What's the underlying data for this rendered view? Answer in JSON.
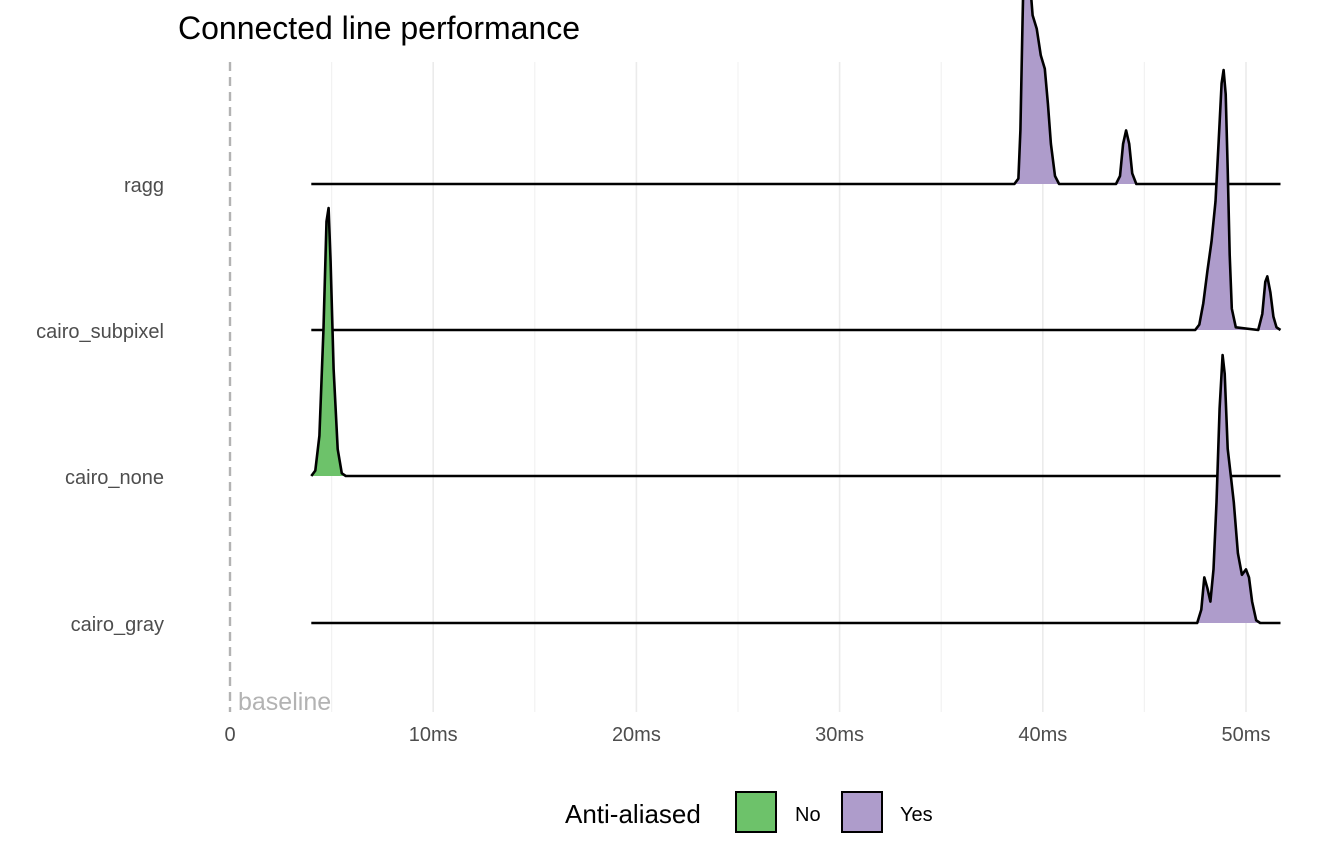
{
  "chart_data": {
    "type": "area",
    "title": "Connected line performance",
    "xlabel": "",
    "ylabel": "",
    "x_unit": "ms",
    "xlim": [
      0,
      51.8
    ],
    "x_ticks": [
      {
        "value": 0,
        "label": "0"
      },
      {
        "value": 10,
        "label": "10ms"
      },
      {
        "value": 20,
        "label": "20ms"
      },
      {
        "value": 30,
        "label": "30ms"
      },
      {
        "value": 40,
        "label": "40ms"
      },
      {
        "value": 50,
        "label": "50ms"
      }
    ],
    "x_minor_gridlines": [
      5,
      15,
      25,
      35,
      45
    ],
    "grid": true,
    "baseline": {
      "value": 0,
      "label": "baseline"
    },
    "categories": [
      "ragg",
      "cairo_subpixel",
      "cairo_none",
      "cairo_gray"
    ],
    "x_range": [
      4.0,
      51.7
    ],
    "legend": {
      "title": "Anti-aliased",
      "position": "bottom",
      "entries": [
        {
          "label": "No",
          "color": "#6dc26a"
        },
        {
          "label": "Yes",
          "color": "#ae9ccb"
        }
      ]
    },
    "series": [
      {
        "category": "ragg",
        "anti_aliased": "Yes",
        "points": [
          [
            38.6,
            0
          ],
          [
            38.8,
            0.02
          ],
          [
            38.9,
            0.2
          ],
          [
            39.0,
            0.6
          ],
          [
            39.1,
            0.95
          ],
          [
            39.2,
            1.0
          ],
          [
            39.3,
            0.82
          ],
          [
            39.5,
            0.63
          ],
          [
            39.7,
            0.58
          ],
          [
            39.9,
            0.48
          ],
          [
            40.1,
            0.43
          ],
          [
            40.25,
            0.3
          ],
          [
            40.4,
            0.15
          ],
          [
            40.6,
            0.03
          ],
          [
            40.8,
            0
          ],
          [
            43.6,
            0
          ],
          [
            43.8,
            0.03
          ],
          [
            43.95,
            0.15
          ],
          [
            44.1,
            0.2
          ],
          [
            44.25,
            0.15
          ],
          [
            44.4,
            0.04
          ],
          [
            44.6,
            0
          ]
        ]
      },
      {
        "category": "cairo_subpixel",
        "anti_aliased": "Yes",
        "points": [
          [
            47.5,
            0
          ],
          [
            47.7,
            0.02
          ],
          [
            47.9,
            0.1
          ],
          [
            48.1,
            0.22
          ],
          [
            48.3,
            0.33
          ],
          [
            48.5,
            0.48
          ],
          [
            48.65,
            0.7
          ],
          [
            48.8,
            0.92
          ],
          [
            48.9,
            0.97
          ],
          [
            49.0,
            0.88
          ],
          [
            49.1,
            0.6
          ],
          [
            49.2,
            0.28
          ],
          [
            49.3,
            0.08
          ],
          [
            49.5,
            0.01
          ],
          [
            50.6,
            0
          ],
          [
            50.8,
            0.06
          ],
          [
            50.95,
            0.18
          ],
          [
            51.05,
            0.2
          ],
          [
            51.2,
            0.14
          ],
          [
            51.35,
            0.05
          ],
          [
            51.5,
            0.01
          ],
          [
            51.7,
            0
          ]
        ]
      },
      {
        "category": "cairo_none",
        "anti_aliased": "No",
        "points": [
          [
            4.0,
            0
          ],
          [
            4.2,
            0.02
          ],
          [
            4.4,
            0.15
          ],
          [
            4.6,
            0.55
          ],
          [
            4.75,
            0.95
          ],
          [
            4.85,
            1.0
          ],
          [
            4.95,
            0.8
          ],
          [
            5.1,
            0.4
          ],
          [
            5.3,
            0.1
          ],
          [
            5.5,
            0.01
          ],
          [
            5.7,
            0
          ]
        ]
      },
      {
        "category": "cairo_gray",
        "anti_aliased": "Yes",
        "points": [
          [
            47.6,
            0
          ],
          [
            47.8,
            0.05
          ],
          [
            47.95,
            0.17
          ],
          [
            48.1,
            0.13
          ],
          [
            48.25,
            0.08
          ],
          [
            48.4,
            0.2
          ],
          [
            48.55,
            0.45
          ],
          [
            48.7,
            0.8
          ],
          [
            48.85,
            1.0
          ],
          [
            48.95,
            0.93
          ],
          [
            49.1,
            0.65
          ],
          [
            49.25,
            0.55
          ],
          [
            49.4,
            0.45
          ],
          [
            49.6,
            0.26
          ],
          [
            49.8,
            0.18
          ],
          [
            50.0,
            0.2
          ],
          [
            50.15,
            0.17
          ],
          [
            50.3,
            0.08
          ],
          [
            50.5,
            0.01
          ],
          [
            50.7,
            0
          ]
        ]
      }
    ]
  }
}
